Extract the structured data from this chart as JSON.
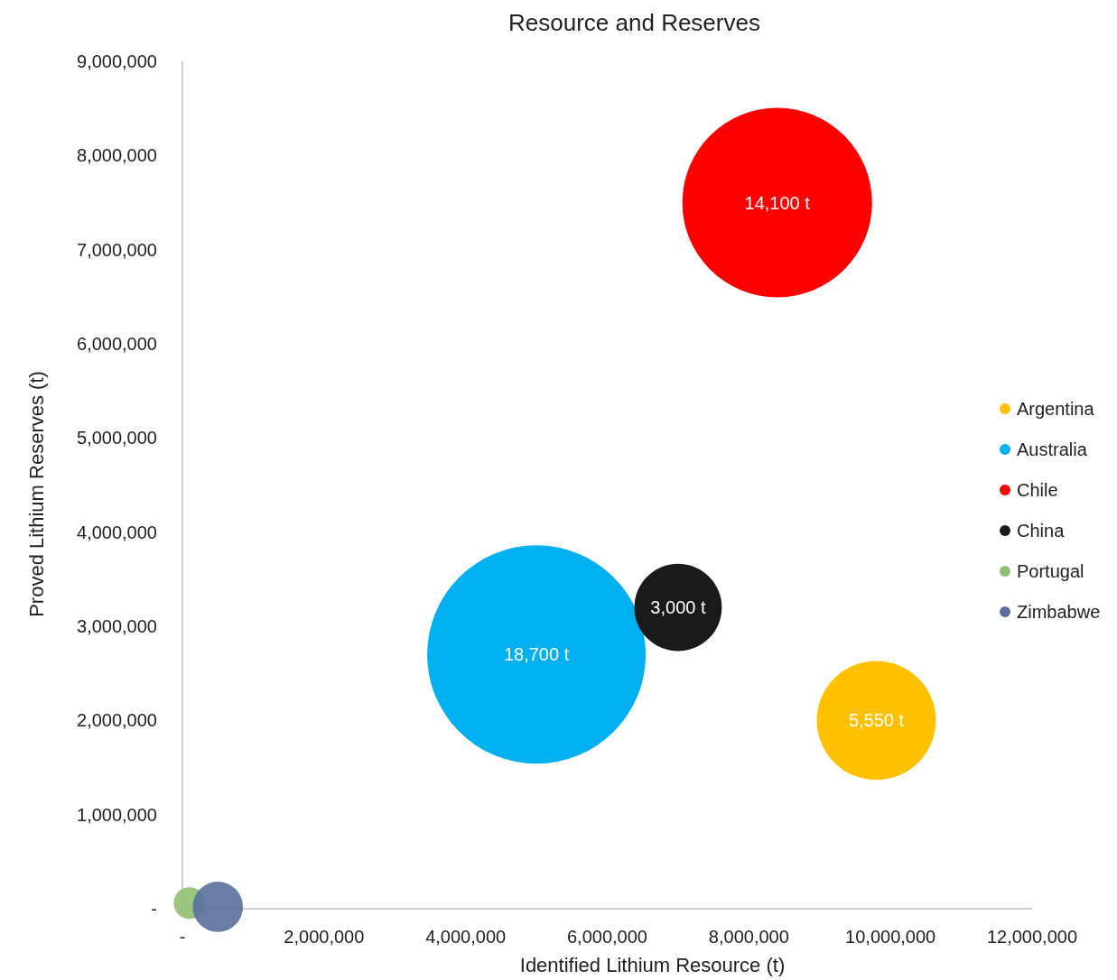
{
  "chart_data": {
    "type": "bubble",
    "title": "Resource and Reserves",
    "xlabel": "Identified Lithium Resource (t)",
    "ylabel": "Proved Lithium Reserves (t)",
    "xlim": [
      0,
      12000000
    ],
    "ylim": [
      0,
      9000000
    ],
    "xticks": [
      {
        "value": 0,
        "label": "-"
      },
      {
        "value": 2000000,
        "label": "2,000,000"
      },
      {
        "value": 4000000,
        "label": "4,000,000"
      },
      {
        "value": 6000000,
        "label": "6,000,000"
      },
      {
        "value": 8000000,
        "label": "8,000,000"
      },
      {
        "value": 10000000,
        "label": "10,000,000"
      },
      {
        "value": 12000000,
        "label": "12,000,000"
      }
    ],
    "yticks": [
      {
        "value": 0,
        "label": "-"
      },
      {
        "value": 1000000,
        "label": "1,000,000"
      },
      {
        "value": 2000000,
        "label": "2,000,000"
      },
      {
        "value": 3000000,
        "label": "3,000,000"
      },
      {
        "value": 4000000,
        "label": "4,000,000"
      },
      {
        "value": 5000000,
        "label": "5,000,000"
      },
      {
        "value": 6000000,
        "label": "6,000,000"
      },
      {
        "value": 7000000,
        "label": "7,000,000"
      },
      {
        "value": 8000000,
        "label": "8,000,000"
      },
      {
        "value": 9000000,
        "label": "9,000,000"
      }
    ],
    "legend": "right",
    "annotations": [
      {
        "text": "5,550 t",
        "x": 9800000,
        "y": 2000000
      },
      {
        "text": "18,700 t",
        "x": 5000000,
        "y": 2700000
      },
      {
        "text": "14,100 t",
        "x": 8400000,
        "y": 7500000
      },
      {
        "text": "3,000 t",
        "x": 7000000,
        "y": 3200000
      }
    ],
    "series": [
      {
        "name": "Argentina",
        "color": "#ffc000",
        "x": [
          9800000
        ],
        "values": [
          2000000
        ],
        "sizes": [
          0.297
        ]
      },
      {
        "name": "Australia",
        "color": "#00b0f0",
        "x": [
          5000000
        ],
        "values": [
          2700000
        ],
        "sizes": [
          1
        ]
      },
      {
        "name": "Chile",
        "color": "#ff0000",
        "x": [
          8400000
        ],
        "values": [
          7500000
        ],
        "sizes": [
          0.754
        ]
      },
      {
        "name": "China",
        "color": "#1a1a1a",
        "x": [
          7000000
        ],
        "values": [
          3200000
        ],
        "sizes": [
          0.16
        ]
      },
      {
        "name": "Portugal",
        "color": "#8fc070",
        "x": [
          100000
        ],
        "values": [
          60000
        ],
        "sizes": [
          0.021
        ]
      },
      {
        "name": "Zimbabwe",
        "color": "#5a6f9c",
        "x": [
          500000
        ],
        "values": [
          20000
        ],
        "sizes": [
          0.053
        ]
      }
    ]
  }
}
